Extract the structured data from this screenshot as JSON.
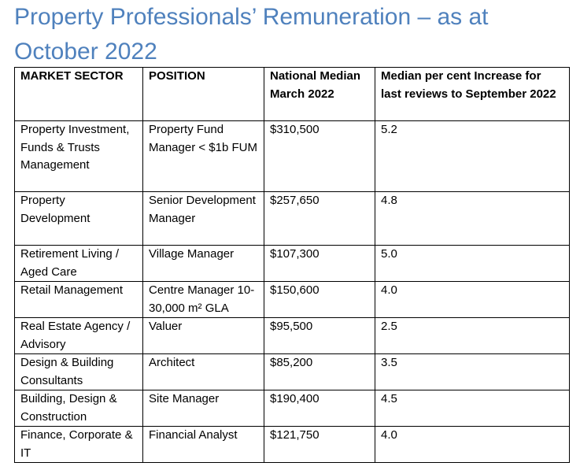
{
  "title": "Property Professionals’ Remuneration – as at October 2022",
  "table": {
    "headers": {
      "sector": "MARKET SECTOR",
      "position": "POSITION",
      "median": "National Median March 2022",
      "increase": "Median per cent Increase for last reviews to September 2022"
    },
    "rows": [
      {
        "sector": "Property Investment, Funds & Trusts Management",
        "position": "Property Fund Manager < $1b FUM",
        "median": "$310,500",
        "increase": "5.2"
      },
      {
        "sector": "Property Development",
        "position": "Senior Development Manager",
        "median": "$257,650",
        "increase": "4.8"
      },
      {
        "sector": "Retirement Living / Aged Care",
        "position": "Village Manager",
        "median": "$107,300",
        "increase": "5.0"
      },
      {
        "sector": "Retail Management",
        "position": "Centre Manager 10-30,000 m² GLA",
        "median": "$150,600",
        "increase": "4.0"
      },
      {
        "sector": "Real Estate Agency / Advisory",
        "position": "Valuer",
        "median": "$95,500",
        "increase": "2.5"
      },
      {
        "sector": "Design & Building Consultants",
        "position": "Architect",
        "median": "$85,200",
        "increase": "3.5"
      },
      {
        "sector": "Building, Design & Construction",
        "position": "Site Manager",
        "median": "$190,400",
        "increase": "4.5"
      },
      {
        "sector": "Finance, Corporate & IT",
        "position": "Financial Analyst",
        "median": "$121,750",
        "increase": "4.0"
      }
    ]
  }
}
